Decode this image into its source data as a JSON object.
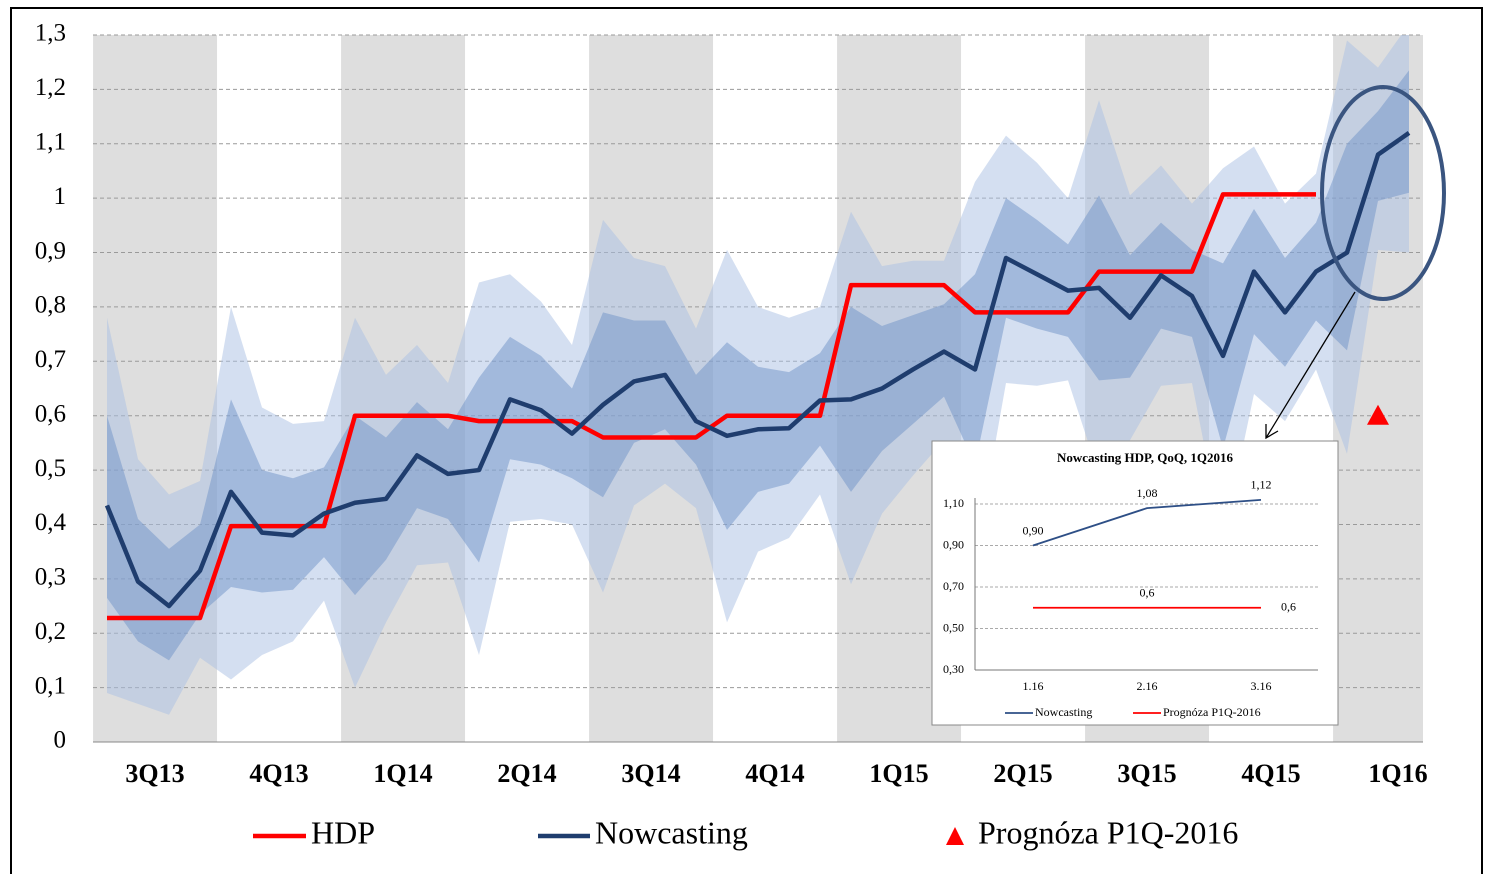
{
  "chart_data": [
    {
      "type": "line",
      "quarters": [
        "3Q13",
        "4Q13",
        "1Q14",
        "2Q14",
        "3Q14",
        "4Q14",
        "1Q15",
        "2Q15",
        "3Q15",
        "4Q15",
        "1Q16"
      ],
      "ylim": [
        0,
        1.3
      ],
      "yticks": [
        0,
        {
          "value": 0.1,
          "label": "0,1"
        },
        {
          "value": 0.2,
          "label": "0,2"
        },
        {
          "value": 0.3,
          "label": "0,3"
        },
        {
          "value": 0.4,
          "label": "0,4"
        },
        {
          "value": 0.5,
          "label": "0,5"
        },
        {
          "value": 0.6,
          "label": "0,6"
        },
        {
          "value": 0.7,
          "label": "0,7"
        },
        {
          "value": 0.8,
          "label": "0,8"
        },
        {
          "value": 0.9,
          "label": "0,9"
        },
        1,
        {
          "value": 1.1,
          "label": "1,1"
        },
        {
          "value": 1.2,
          "label": "1,2"
        },
        {
          "value": 1.3,
          "label": "1,3"
        }
      ],
      "grid": true,
      "bands": [
        {
          "color": "#a9c0e3",
          "upper": [
            0.78,
            0.52,
            0.455,
            0.48,
            0.8,
            0.615,
            0.585,
            0.59,
            0.78,
            0.675,
            0.73,
            0.66,
            0.845,
            0.86,
            0.81,
            0.73,
            0.96,
            0.89,
            0.875,
            0.76,
            0.905,
            0.8,
            0.78,
            0.8,
            0.975,
            0.875,
            0.885,
            0.885,
            1.03,
            1.115,
            1.065,
            1.0,
            1.18,
            1.005,
            1.06,
            0.99,
            1.055,
            1.095,
            0.99,
            1.045,
            1.29,
            1.24,
            1.32
          ],
          "lower": [
            0.09,
            0.07,
            0.05,
            0.155,
            0.115,
            0.16,
            0.185,
            0.26,
            0.1,
            0.22,
            0.325,
            0.33,
            0.16,
            0.405,
            0.41,
            0.4,
            0.275,
            0.435,
            0.475,
            0.43,
            0.22,
            0.35,
            0.375,
            0.455,
            0.29,
            0.42,
            0.49,
            0.555,
            0.34,
            0.66,
            0.655,
            0.665,
            0.49,
            0.555,
            0.655,
            0.66,
            0.37,
            0.64,
            0.59,
            0.685,
            0.53,
            0.905,
            0.9
          ]
        },
        {
          "color": "#6f93c8",
          "upper": [
            0.6,
            0.41,
            0.355,
            0.4,
            0.63,
            0.5,
            0.485,
            0.505,
            0.6,
            0.56,
            0.625,
            0.575,
            0.67,
            0.745,
            0.71,
            0.65,
            0.79,
            0.775,
            0.775,
            0.675,
            0.735,
            0.69,
            0.68,
            0.715,
            0.8,
            0.765,
            0.785,
            0.805,
            0.86,
            1.0,
            0.96,
            0.915,
            1.005,
            0.895,
            0.955,
            0.905,
            0.88,
            0.98,
            0.89,
            0.955,
            1.1,
            1.16,
            1.235
          ],
          "lower": [
            0.265,
            0.185,
            0.15,
            0.235,
            0.285,
            0.275,
            0.28,
            0.34,
            0.27,
            0.335,
            0.43,
            0.41,
            0.33,
            0.52,
            0.51,
            0.485,
            0.45,
            0.55,
            0.575,
            0.51,
            0.39,
            0.46,
            0.475,
            0.545,
            0.46,
            0.535,
            0.585,
            0.635,
            0.51,
            0.78,
            0.76,
            0.745,
            0.665,
            0.67,
            0.76,
            0.745,
            0.54,
            0.75,
            0.69,
            0.775,
            0.72,
            0.995,
            1.01
          ]
        }
      ],
      "series": [
        {
          "name": "HDP",
          "color": "#ff0000",
          "values": [
            0.228,
            0.228,
            0.228,
            0.228,
            0.397,
            0.397,
            0.397,
            0.397,
            0.6,
            0.6,
            0.6,
            0.6,
            0.59,
            0.59,
            0.59,
            0.59,
            0.56,
            0.56,
            0.56,
            0.56,
            0.6,
            0.6,
            0.6,
            0.6,
            0.84,
            0.84,
            0.84,
            0.84,
            0.79,
            0.79,
            0.79,
            0.79,
            0.865,
            0.865,
            0.865,
            0.865,
            1.007,
            1.007,
            1.007,
            1.007,
            null,
            null,
            null
          ]
        },
        {
          "name": "Nowcasting",
          "color": "#1f3d6e",
          "values": [
            0.435,
            0.295,
            0.25,
            0.315,
            0.46,
            0.385,
            0.38,
            0.42,
            0.44,
            0.447,
            0.527,
            0.493,
            0.5,
            0.63,
            0.61,
            0.567,
            0.62,
            0.663,
            0.675,
            0.59,
            0.563,
            0.575,
            0.577,
            0.628,
            0.63,
            0.65,
            0.685,
            0.718,
            0.685,
            0.89,
            0.86,
            0.83,
            0.835,
            0.78,
            0.858,
            0.82,
            0.71,
            0.865,
            0.79,
            0.865,
            0.9,
            1.08,
            1.12
          ]
        }
      ],
      "forecast": {
        "name": "Prognóza P1Q-2016",
        "color": "#ff0000",
        "index": 41,
        "value": 0.6
      }
    },
    {
      "type": "line",
      "title": "Nowcasting HDP, QoQ, 1Q2016",
      "categories": [
        "1.16",
        "2.16",
        "3.16"
      ],
      "ylim": [
        0.3,
        1.1
      ],
      "yticks": [
        {
          "value": 0.3,
          "label": "0,30"
        },
        {
          "value": 0.5,
          "label": "0,50"
        },
        {
          "value": 0.7,
          "label": "0,70"
        },
        {
          "value": 0.9,
          "label": "0,90"
        },
        {
          "value": 1.1,
          "label": "1,10"
        }
      ],
      "grid": true,
      "series": [
        {
          "name": "Nowcasting",
          "color": "#2e4f86",
          "values": [
            0.9,
            1.08,
            1.12
          ],
          "value_labels": [
            "0,90",
            "1,08",
            "1,12"
          ]
        },
        {
          "name": "Prognóza P1Q-2016",
          "color": "#ff0000",
          "values": [
            0.6,
            0.6,
            0.6
          ],
          "value_labels": [
            null,
            "0,6",
            "0,6"
          ]
        }
      ]
    }
  ]
}
